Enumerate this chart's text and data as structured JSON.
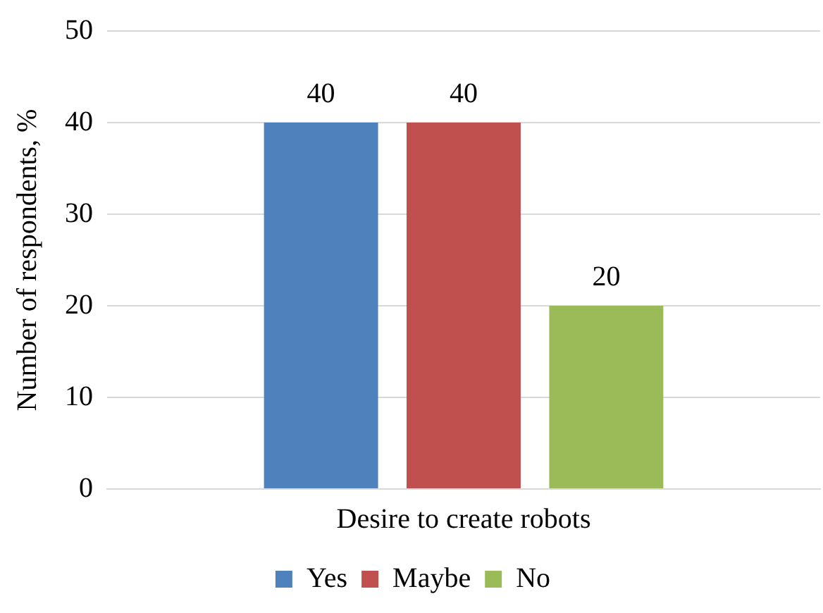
{
  "chart_data": {
    "type": "bar",
    "categories": [
      "Desire to create robots"
    ],
    "ylabel": "Number of respondents, %",
    "series": [
      {
        "name": "Yes",
        "color": "#4f81bd",
        "values": [
          40
        ]
      },
      {
        "name": "Maybe",
        "color": "#c0504d",
        "values": [
          40
        ]
      },
      {
        "name": "No",
        "color": "#9bbb59",
        "values": [
          20
        ]
      }
    ],
    "ylim": [
      0,
      50
    ],
    "yticks": [
      0,
      10,
      20,
      30,
      40,
      50
    ],
    "grid": "y",
    "legend": "bottom",
    "data_labels": true
  }
}
